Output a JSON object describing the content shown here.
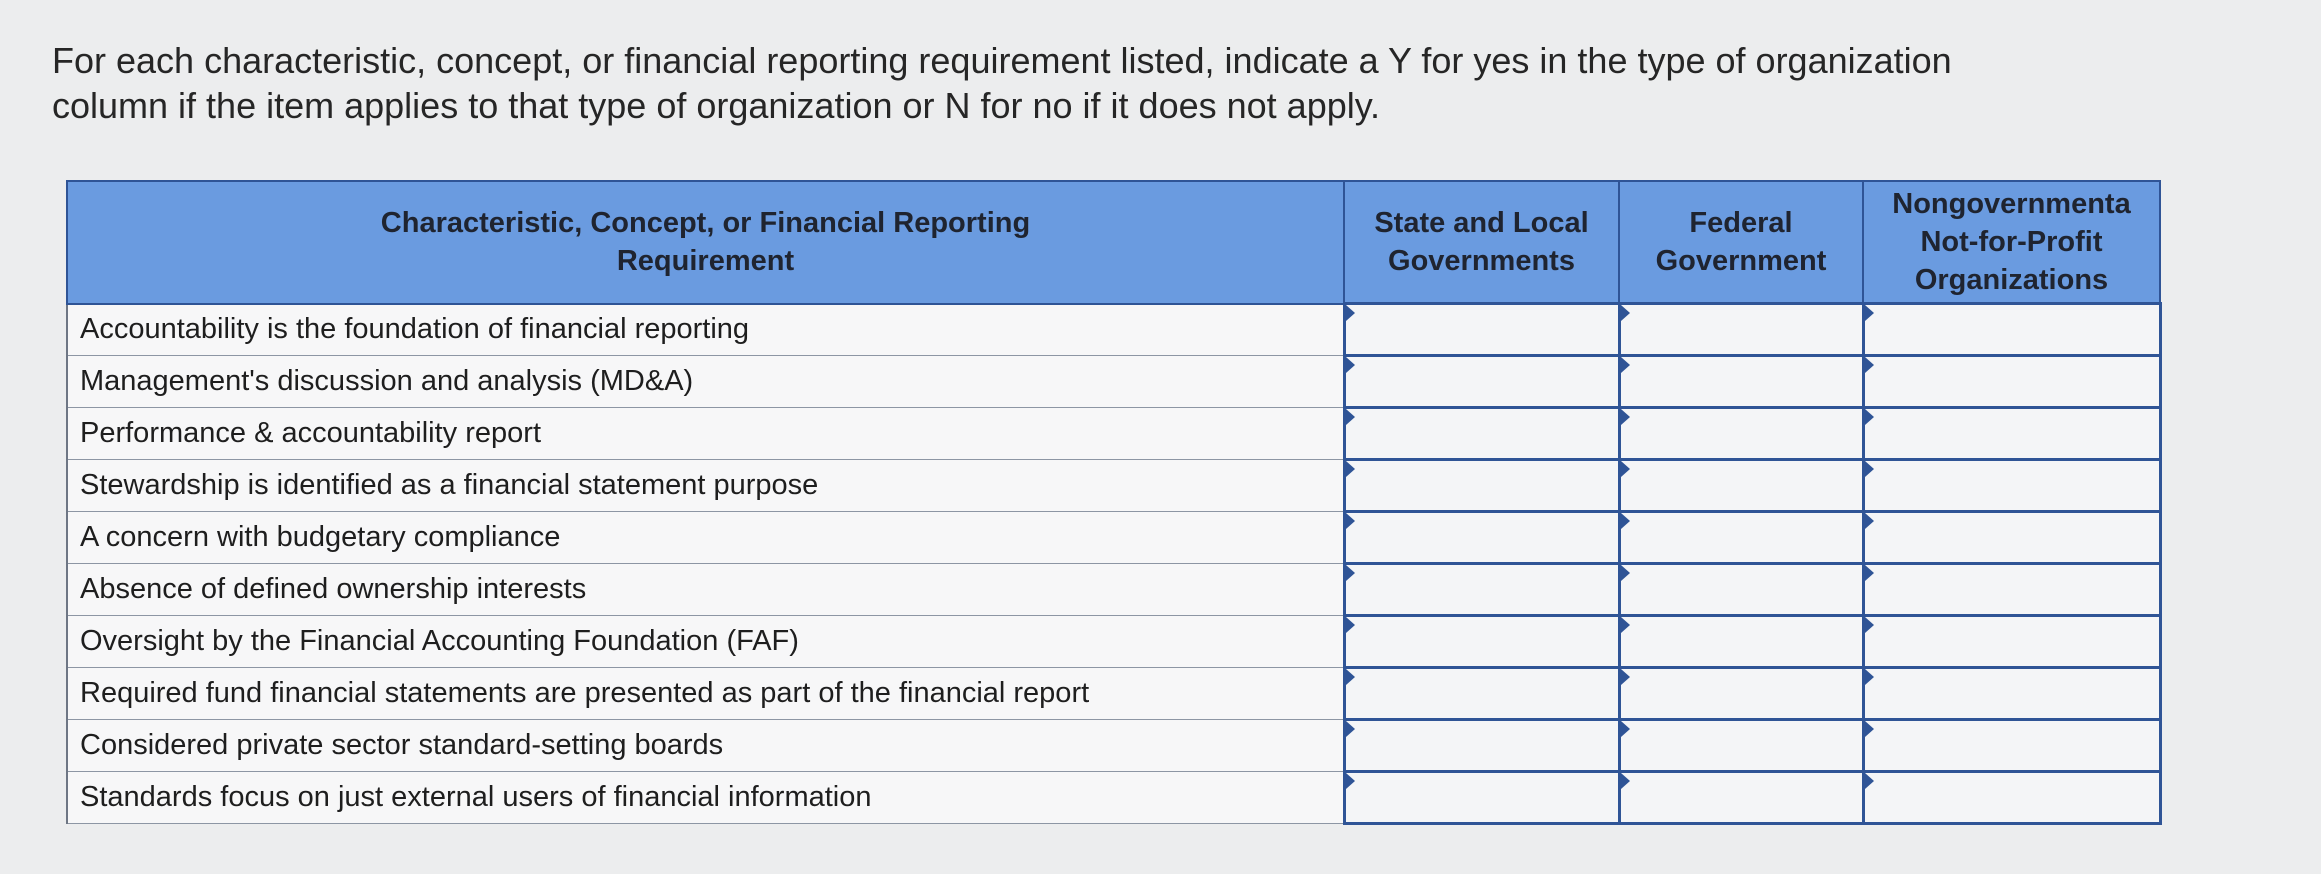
{
  "instructions": {
    "line1": "For each characteristic, concept, or financial reporting requirement listed, indicate a Y for yes in the type of organization",
    "line2": "column if the item applies to that type of organization or N for no if it does not apply."
  },
  "table": {
    "headers": {
      "characteristic_line1": "Characteristic, Concept, or Financial Reporting",
      "characteristic_line2": "Requirement",
      "state_local_line1": "State and Local",
      "state_local_line2": "Governments",
      "federal_line1": "Federal",
      "federal_line2": "Government",
      "nfp_line1": "Nongovernmenta",
      "nfp_line2": "Not-for-Profit",
      "nfp_line3": "Organizations"
    },
    "rows": [
      {
        "item": "Accountability is the foundation of financial reporting",
        "state_local": "",
        "federal": "",
        "nfp": ""
      },
      {
        "item": "Management's discussion and analysis (MD&A)",
        "state_local": "",
        "federal": "",
        "nfp": ""
      },
      {
        "item": "Performance & accountability report",
        "state_local": "",
        "federal": "",
        "nfp": ""
      },
      {
        "item": "Stewardship is identified as a financial statement purpose",
        "state_local": "",
        "federal": "",
        "nfp": ""
      },
      {
        "item": "A concern with budgetary compliance",
        "state_local": "",
        "federal": "",
        "nfp": ""
      },
      {
        "item": "Absence of defined ownership interests",
        "state_local": "",
        "federal": "",
        "nfp": ""
      },
      {
        "item": "Oversight by the Financial Accounting Foundation (FAF)",
        "state_local": "",
        "federal": "",
        "nfp": ""
      },
      {
        "item": "Required fund financial statements are presented as part of the financial report",
        "state_local": "",
        "federal": "",
        "nfp": ""
      },
      {
        "item": "Considered private sector standard-setting boards",
        "state_local": "",
        "federal": "",
        "nfp": ""
      },
      {
        "item": "Standards focus on just external users of financial information",
        "state_local": "",
        "federal": "",
        "nfp": ""
      }
    ]
  },
  "colors": {
    "header_background": "#6a9be0",
    "answer_border": "#2f5496",
    "page_background": "#ecedee"
  }
}
